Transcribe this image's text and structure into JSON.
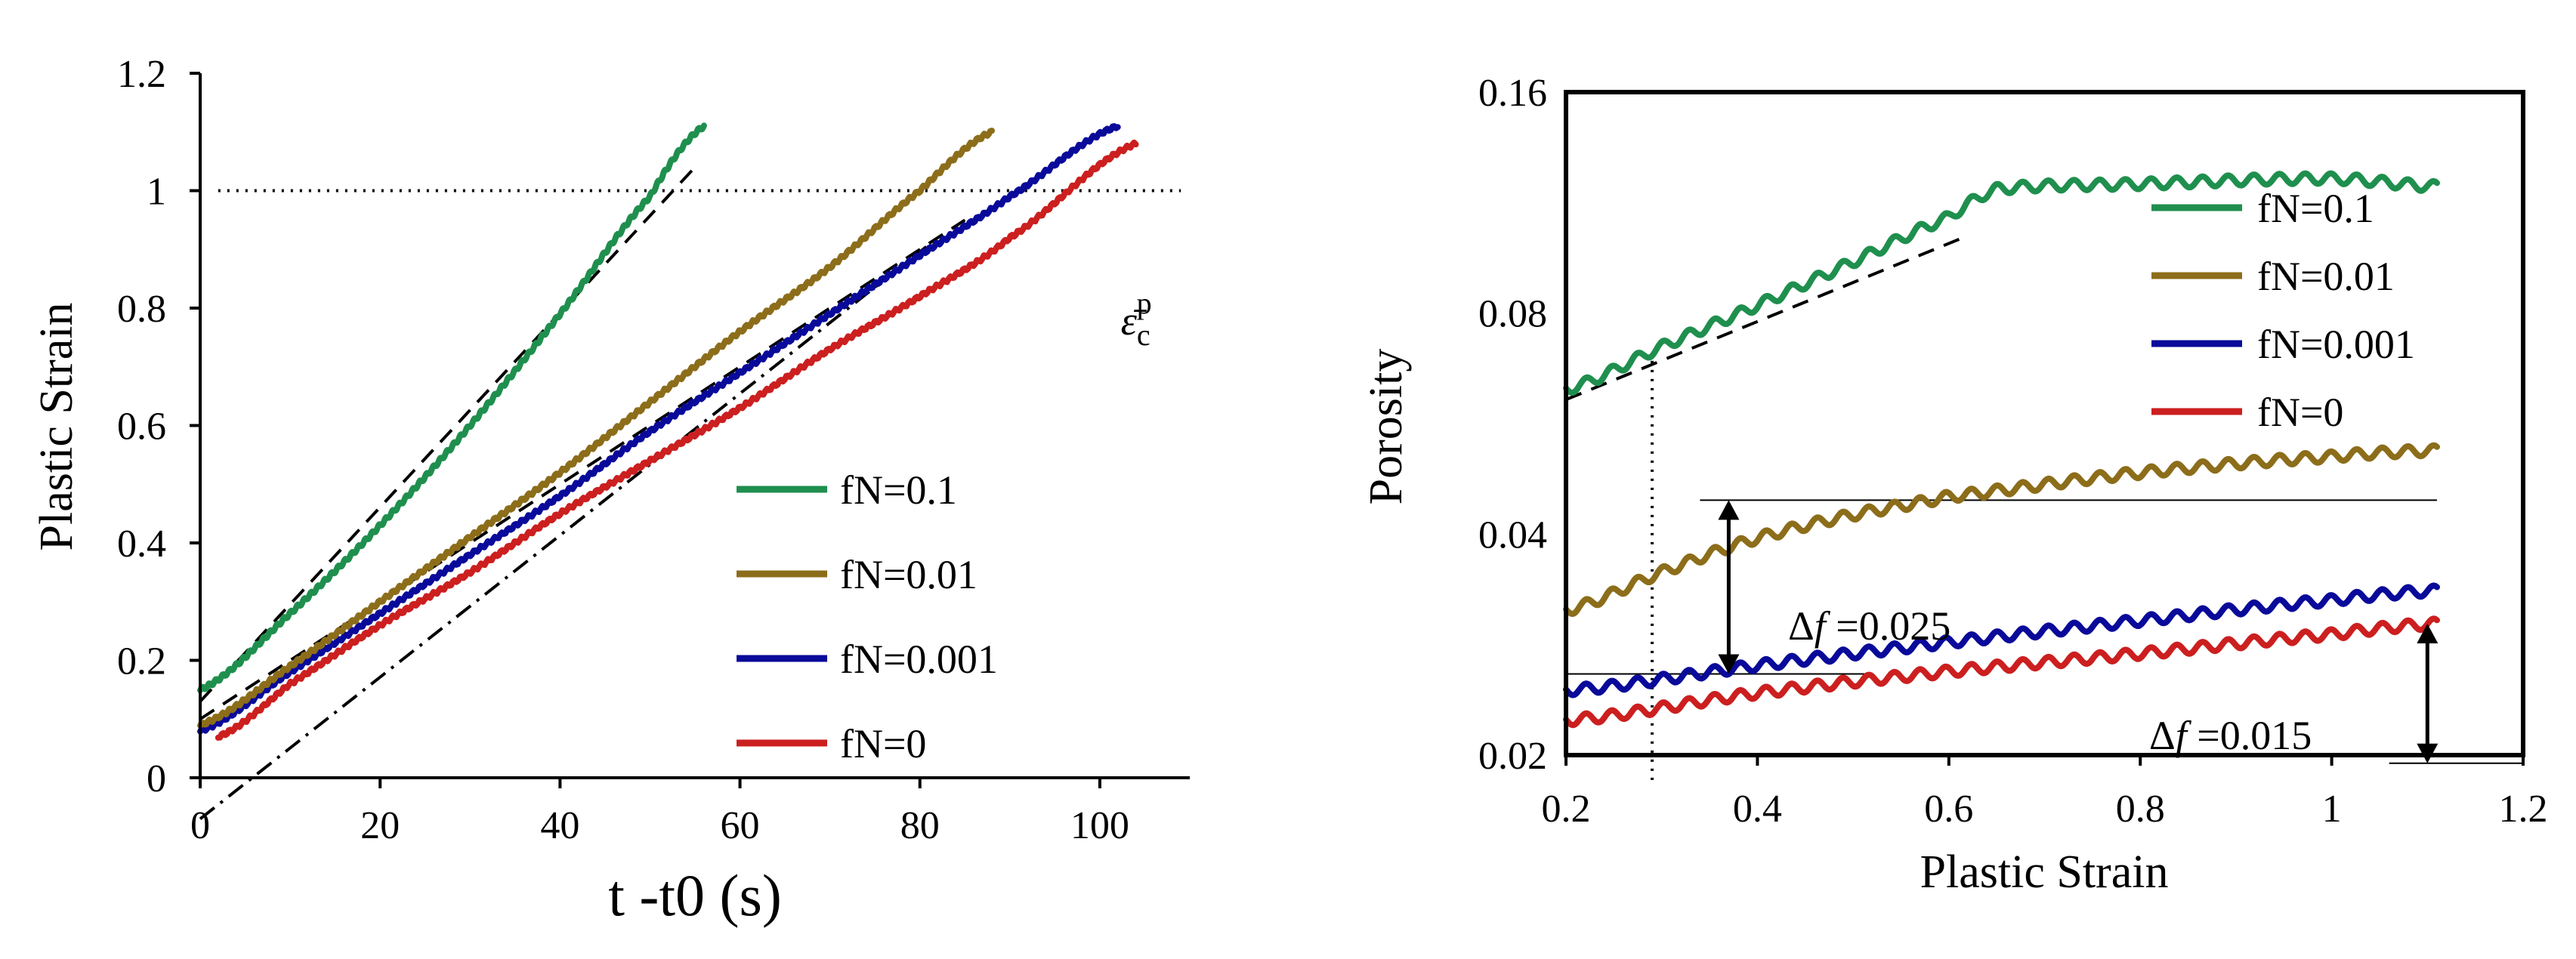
{
  "chart_data": [
    {
      "type": "line",
      "xlabel": "t -t0 (s)",
      "ylabel": "Plastic Strain",
      "xlim": [
        0,
        110
      ],
      "ylim": [
        0,
        1.2
      ],
      "xticks": [
        0,
        20,
        40,
        60,
        80,
        100
      ],
      "yticks": [
        0,
        0.2,
        0.4,
        0.6,
        0.8,
        1,
        1.2
      ],
      "xtick_labels": [
        "0",
        "20",
        "40",
        "60",
        "80",
        "100"
      ],
      "ytick_labels": [
        "0",
        "0.2",
        "0.4",
        "0.6",
        "0.8",
        "1",
        "1.2"
      ],
      "grid": false,
      "legend_position": "center-right",
      "series": [
        {
          "name": "fN=0.1",
          "color": "#1f8f4e",
          "x": [
            0,
            10,
            20,
            30,
            40,
            50,
            56
          ],
          "y": [
            0.15,
            0.28,
            0.43,
            0.6,
            0.79,
            0.99,
            1.11
          ]
        },
        {
          "name": "fN=0.01",
          "color": "#8c6d1a",
          "x": [
            0,
            10,
            20,
            30,
            40,
            50,
            60,
            70,
            80,
            88
          ],
          "y": [
            0.09,
            0.19,
            0.3,
            0.41,
            0.52,
            0.64,
            0.76,
            0.87,
            1.0,
            1.1
          ]
        },
        {
          "name": "fN=0.001",
          "color": "#0a0a9a",
          "x": [
            0,
            10,
            20,
            30,
            40,
            50,
            60,
            70,
            80,
            90,
            102
          ],
          "y": [
            0.08,
            0.18,
            0.28,
            0.38,
            0.48,
            0.59,
            0.69,
            0.79,
            0.89,
            0.99,
            1.11
          ]
        },
        {
          "name": "fN=0",
          "color": "#cc1f1f",
          "x": [
            2,
            10,
            20,
            30,
            40,
            50,
            60,
            70,
            80,
            90,
            104
          ],
          "y": [
            0.07,
            0.16,
            0.26,
            0.35,
            0.45,
            0.54,
            0.63,
            0.73,
            0.82,
            0.92,
            1.08
          ]
        }
      ],
      "reference_lines": [
        {
          "style": "dotted",
          "orientation": "horizontal",
          "y": 1,
          "x_range": [
            2,
            109
          ]
        },
        {
          "style": "dashed",
          "x": [
            0,
            55
          ],
          "y": [
            0.13,
            1.04
          ]
        },
        {
          "style": "dashed",
          "x": [
            0,
            85
          ],
          "y": [
            0.1,
            0.95
          ]
        },
        {
          "style": "dash-dot",
          "x": [
            0,
            82
          ],
          "y": [
            -0.07,
            0.92
          ]
        }
      ],
      "annotations": [
        {
          "text": "ε̄cp",
          "base": "ε̄",
          "subscript": "c",
          "superscript": "p",
          "x": 103,
          "y": 0.8
        }
      ]
    },
    {
      "type": "line",
      "xlabel": "Plastic Strain",
      "ylabel": "Porosity",
      "xlim": [
        0.2,
        1.2
      ],
      "ylim": [
        0.02,
        0.16
      ],
      "xticks": [
        0.2,
        0.4,
        0.6,
        0.8,
        1.0,
        1.2
      ],
      "yticks": [
        0.02,
        0.04,
        0.08,
        0.16
      ],
      "xtick_labels": [
        "0.2",
        "0.4",
        "0.6",
        "0.8",
        "1",
        "1.2"
      ],
      "ytick_labels": [
        "0.02",
        "0.04",
        "0.08",
        "0.16"
      ],
      "yscale": "log",
      "grid": false,
      "legend_position": "top-right",
      "series": [
        {
          "name": "fN=0.1",
          "color": "#1f8f4e",
          "x": [
            0.2,
            0.3,
            0.4,
            0.5,
            0.6,
            0.65,
            0.8,
            1.0,
            1.11
          ],
          "y": [
            0.063,
            0.072,
            0.082,
            0.094,
            0.108,
            0.118,
            0.12,
            0.122,
            0.119
          ]
        },
        {
          "name": "fN=0.01",
          "color": "#8c6d1a",
          "x": [
            0.2,
            0.3,
            0.4,
            0.5,
            0.6,
            0.8,
            1.0,
            1.11
          ],
          "y": [
            0.0315,
            0.0355,
            0.0395,
            0.0425,
            0.045,
            0.0485,
            0.051,
            0.052
          ]
        },
        {
          "name": "fN=0.001",
          "color": "#0a0a9a",
          "x": [
            0.2,
            0.4,
            0.6,
            0.8,
            1.0,
            1.11
          ],
          "y": [
            0.0245,
            0.0265,
            0.0285,
            0.0305,
            0.0325,
            0.0335
          ]
        },
        {
          "name": "fN=0",
          "color": "#cc1f1f",
          "x": [
            0.2,
            0.4,
            0.6,
            0.8,
            1.0,
            1.11
          ],
          "y": [
            0.0223,
            0.0243,
            0.026,
            0.0275,
            0.0292,
            0.0302
          ]
        }
      ],
      "reference_lines": [
        {
          "style": "dashed",
          "x": [
            0.2,
            0.62
          ],
          "y": [
            0.061,
            0.102
          ]
        },
        {
          "style": "dotted",
          "orientation": "vertical",
          "x": 0.29,
          "y_range": [
            0.0185,
            0.07
          ]
        },
        {
          "style": "solid-thin",
          "orientation": "horizontal",
          "y": 0.0445,
          "x_range": [
            0.34,
            1.11
          ]
        },
        {
          "style": "solid-thin",
          "orientation": "horizontal",
          "y": 0.0258,
          "x_range": [
            0.2,
            0.52
          ]
        },
        {
          "style": "solid-thin",
          "orientation": "horizontal",
          "y": 0.0195,
          "x_range": [
            1.06,
            1.2
          ]
        }
      ],
      "annotations": [
        {
          "text": "Δf =0.025",
          "base": "Δ",
          "italic": "f",
          "rest": " =0.025",
          "arrow_x": 0.37,
          "y_from": 0.0445,
          "y_to": 0.0258
        },
        {
          "text": "Δf =0.015",
          "base": "Δ",
          "italic": "f",
          "rest": " =0.015",
          "arrow_x": 1.1,
          "y_from": 0.0302,
          "y_to": 0.0195
        }
      ]
    }
  ]
}
